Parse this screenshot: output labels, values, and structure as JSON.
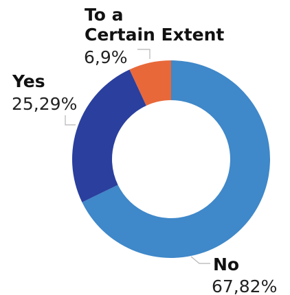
{
  "chart_data": {
    "type": "pie",
    "variant": "donut",
    "slices": [
      {
        "label": "No",
        "value": 67.82,
        "value_label": "67,82%",
        "color": "#3f88c9"
      },
      {
        "label": "Yes",
        "value": 25.29,
        "value_label": "25,29%",
        "color": "#2a3f9e"
      },
      {
        "label": "To a Certain Extent",
        "label_lines": [
          "To a",
          "Certain Extent"
        ],
        "value": 6.9,
        "value_label": "6,9%",
        "color": "#e8683a"
      }
    ],
    "legend": "none"
  }
}
